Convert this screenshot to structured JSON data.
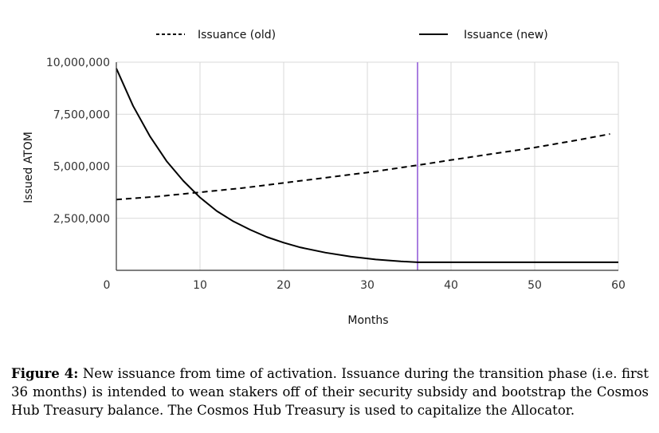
{
  "chart_data": {
    "type": "line",
    "xlabel": "Months",
    "ylabel": "Issued ATOM",
    "xlim": [
      0,
      60
    ],
    "ylim": [
      0,
      10000000
    ],
    "x_ticks": [
      "0",
      "10",
      "20",
      "30",
      "40",
      "50",
      "60"
    ],
    "y_ticks": [
      "2,500,000",
      "5,000,000",
      "7,500,000",
      "10,000,000"
    ],
    "grid": true,
    "legend_position": "top",
    "vertical_marker": {
      "x": 36,
      "color": "#a97fe0"
    },
    "series": [
      {
        "name": "Issuance (old)",
        "style": "dashed",
        "color": "#000000",
        "x": [
          0,
          5,
          10,
          15,
          20,
          25,
          30,
          36,
          40,
          45,
          50,
          55,
          59
        ],
        "y": [
          3400000,
          3550000,
          3750000,
          3950000,
          4200000,
          4450000,
          4700000,
          5050000,
          5300000,
          5600000,
          5900000,
          6250000,
          6550000
        ]
      },
      {
        "name": "Issuance (new)",
        "style": "solid",
        "color": "#000000",
        "x": [
          0,
          2,
          4,
          6,
          8,
          10,
          12,
          14,
          16,
          18,
          20,
          22,
          25,
          28,
          31,
          34,
          36,
          40,
          45,
          50,
          55,
          60
        ],
        "y": [
          9700000,
          7900000,
          6450000,
          5250000,
          4300000,
          3500000,
          2850000,
          2350000,
          1950000,
          1600000,
          1330000,
          1100000,
          850000,
          660000,
          520000,
          430000,
          390000,
          390000,
          390000,
          390000,
          390000,
          390000
        ]
      }
    ]
  },
  "caption": {
    "label": "Figure 4:",
    "text": "New issuance from time of activation. Issuance during the transition phase (i.e. first 36 months) is intended to wean stakers off of their security subsidy and bootstrap the Cosmos Hub Treasury balance. The Cosmos Hub Treasury is used to capitalize the Allocator."
  }
}
